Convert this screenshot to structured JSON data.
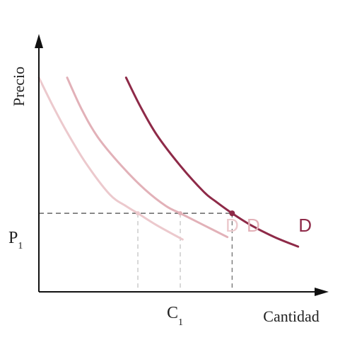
{
  "chart_data": {
    "type": "line",
    "xlabel": "Cantidad",
    "ylabel": "Precio",
    "price_level": {
      "label": "P",
      "subscript": "1",
      "value": 3.3
    },
    "quantity_level": {
      "label": "C",
      "subscript": "1",
      "value": 4.2
    },
    "xlim": [
      0,
      12
    ],
    "ylim": [
      0,
      10
    ],
    "colors": {
      "axis": "#111111",
      "guide": "#666666",
      "faint": "#ecc9cd",
      "light": "#e2b1b8",
      "main": "#8e2a48",
      "main_label": "#8e2a48"
    },
    "series": [
      {
        "name": "D",
        "style": "faint",
        "x": [
          0.0,
          0.6,
          1.2,
          2.0,
          3.0,
          3.7,
          4.2,
          5.0,
          6.1
        ],
        "y": [
          9.0,
          7.8,
          6.7,
          5.4,
          4.1,
          3.6,
          3.3,
          2.8,
          2.2
        ]
      },
      {
        "name": "D",
        "style": "light",
        "x": [
          1.2,
          1.8,
          2.5,
          3.5,
          4.5,
          5.4,
          6.0,
          7.0,
          8.0
        ],
        "y": [
          9.0,
          7.7,
          6.5,
          5.3,
          4.3,
          3.6,
          3.3,
          2.8,
          2.3
        ]
      },
      {
        "name": "D",
        "style": "main",
        "x": [
          3.7,
          4.3,
          5.0,
          6.0,
          7.0,
          7.5,
          8.2,
          9.0,
          10.0,
          11.0
        ],
        "y": [
          9.0,
          7.8,
          6.6,
          5.3,
          4.2,
          3.8,
          3.3,
          2.8,
          2.3,
          1.9
        ]
      }
    ],
    "intersections": [
      {
        "x": 4.2,
        "y": 3.3,
        "style": "faint"
      },
      {
        "x": 6.0,
        "y": 3.3,
        "style": "light"
      },
      {
        "x": 8.2,
        "y": 3.3,
        "style": "main"
      }
    ],
    "curve_labels": [
      {
        "text": "D",
        "x": 8.2,
        "y": 2.8,
        "style": "faint"
      },
      {
        "text": "D",
        "x": 9.1,
        "y": 2.8,
        "style": "light"
      },
      {
        "text": "D",
        "x": 11.3,
        "y": 2.8,
        "style": "main_label"
      }
    ]
  }
}
